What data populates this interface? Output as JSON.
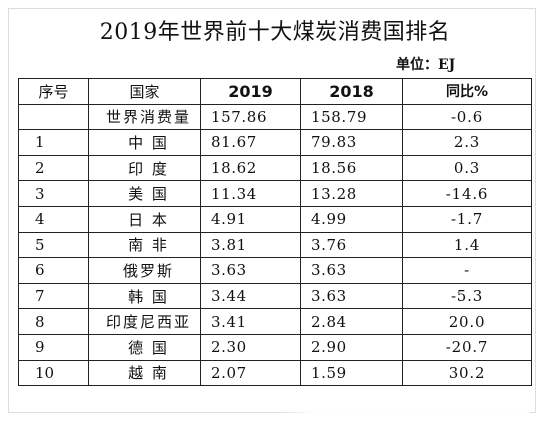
{
  "title": "2019年世界前十大煤炭消费国排名",
  "unit": "单位：EJ",
  "columns": [
    "序号",
    "国家",
    "2019",
    "2018",
    "同比%"
  ],
  "chart_data": {
    "type": "table",
    "title": "2019年世界前十大煤炭消费国排名",
    "unit": "EJ",
    "columns": [
      "序号",
      "国家",
      "2019",
      "2018",
      "同比%"
    ],
    "rows": [
      {
        "idx": "",
        "name": "世界消费量",
        "v2019": "157.86",
        "v2018": "158.79",
        "yoy": "-0.6"
      },
      {
        "idx": "1",
        "name": "中 国",
        "v2019": "81.67",
        "v2018": "79.83",
        "yoy": "2.3"
      },
      {
        "idx": "2",
        "name": "印 度",
        "v2019": "18.62",
        "v2018": "18.56",
        "yoy": "0.3"
      },
      {
        "idx": "3",
        "name": "美 国",
        "v2019": "11.34",
        "v2018": "13.28",
        "yoy": "-14.6"
      },
      {
        "idx": "4",
        "name": "日 本",
        "v2019": "4.91",
        "v2018": "4.99",
        "yoy": "-1.7"
      },
      {
        "idx": "5",
        "name": "南 非",
        "v2019": "3.81",
        "v2018": "3.76",
        "yoy": "1.4"
      },
      {
        "idx": "6",
        "name": "俄罗斯",
        "v2019": "3.63",
        "v2018": "3.63",
        "yoy": "-"
      },
      {
        "idx": "7",
        "name": "韩 国",
        "v2019": "3.44",
        "v2018": "3.63",
        "yoy": "-5.3"
      },
      {
        "idx": "8",
        "name": "印度尼西亚",
        "v2019": "3.41",
        "v2018": "2.84",
        "yoy": "20.0"
      },
      {
        "idx": "9",
        "name": "德 国",
        "v2019": "2.30",
        "v2018": "2.90",
        "yoy": "-20.7"
      },
      {
        "idx": "10",
        "name": "越 南",
        "v2019": "2.07",
        "v2018": "1.59",
        "yoy": "30.2"
      }
    ]
  }
}
